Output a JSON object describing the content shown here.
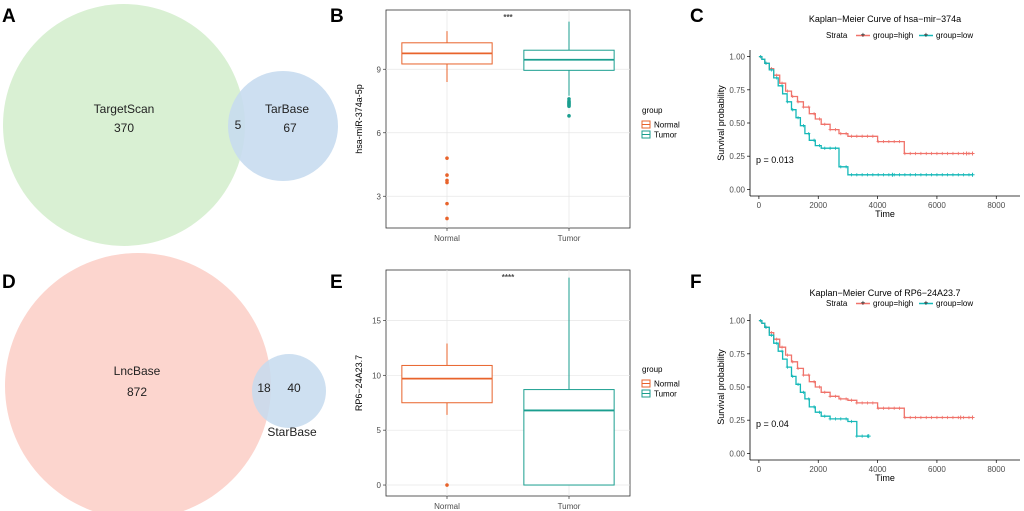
{
  "panel_letters": [
    "A",
    "B",
    "C",
    "D",
    "E",
    "F"
  ],
  "chart_data": [
    {
      "id": "A",
      "type": "venn",
      "sets": [
        {
          "name": "TargetScan",
          "only": 370,
          "color": "#d9f0d3"
        },
        {
          "name": "TarBase",
          "only": 67,
          "color": "#c6dbef"
        }
      ],
      "overlap": 5
    },
    {
      "id": "B",
      "type": "boxplot",
      "ylabel": "hsa-miR-374a-5p",
      "xlabel": "",
      "significance": "***",
      "ylim": [
        1.5,
        11.8
      ],
      "yticks": [
        3,
        6,
        9
      ],
      "categories": [
        "Normal",
        "Tumor"
      ],
      "legend_title": "group",
      "groups": [
        {
          "name": "Normal",
          "color": "#e8632b",
          "whislo": 8.4,
          "q1": 9.25,
          "med": 9.75,
          "q3": 10.25,
          "whishi": 10.8,
          "outliers": [
            4.8,
            4.0,
            3.75,
            3.65,
            2.65,
            1.95
          ]
        },
        {
          "name": "Tumor",
          "color": "#1a9e8f",
          "whislo": 7.75,
          "q1": 8.95,
          "med": 9.45,
          "q3": 9.9,
          "whishi": 11.25,
          "outliers": [
            7.6,
            7.5,
            7.45,
            7.4,
            7.35,
            7.3,
            7.25,
            6.8
          ]
        }
      ]
    },
    {
      "id": "C",
      "type": "line",
      "title": "Kaplan−Meier Curve of hsa−mir−374a",
      "xlabel": "Time",
      "ylabel": "Survival probability",
      "xlim": [
        -300,
        8800
      ],
      "ylim": [
        -0.05,
        1.05
      ],
      "xticks": [
        0,
        2000,
        4000,
        6000,
        8000
      ],
      "yticks": [
        "0.00",
        "0.25",
        "0.50",
        "0.75",
        "1.00"
      ],
      "legend_title": "Strata",
      "pvalue": "p = 0.013",
      "series": [
        {
          "name": "group=high",
          "color": "#f0736b",
          "x": [
            0,
            100,
            200,
            350,
            500,
            700,
            900,
            1100,
            1300,
            1500,
            1700,
            1900,
            2100,
            2400,
            2700,
            3000,
            3300,
            4000,
            4900,
            5500,
            7200
          ],
          "y": [
            1.0,
            0.98,
            0.95,
            0.91,
            0.86,
            0.8,
            0.74,
            0.7,
            0.66,
            0.62,
            0.57,
            0.53,
            0.49,
            0.45,
            0.42,
            0.4,
            0.4,
            0.36,
            0.27,
            0.27,
            0.27
          ],
          "censor_x": [
            7000,
            7200
          ]
        },
        {
          "name": "group=low",
          "color": "#14b8b8",
          "x": [
            0,
            100,
            200,
            350,
            500,
            650,
            800,
            950,
            1100,
            1250,
            1400,
            1550,
            1700,
            1900,
            2100,
            2400,
            2700,
            3000,
            3300,
            7200
          ],
          "y": [
            1.0,
            0.98,
            0.95,
            0.9,
            0.84,
            0.78,
            0.72,
            0.66,
            0.6,
            0.54,
            0.48,
            0.42,
            0.37,
            0.33,
            0.31,
            0.31,
            0.17,
            0.11,
            0.11,
            0.11
          ],
          "censor_x": [
            4500,
            7200
          ]
        }
      ]
    },
    {
      "id": "D",
      "type": "venn",
      "sets": [
        {
          "name": "LncBase",
          "only": 872,
          "color": "#fcd5ce"
        },
        {
          "name": "StarBase",
          "only": 40,
          "color": "#c6dbef"
        }
      ],
      "overlap": 18
    },
    {
      "id": "E",
      "type": "boxplot",
      "ylabel": "RP6−24A23.7",
      "xlabel": "",
      "significance": "****",
      "ylim": [
        -1,
        19.6
      ],
      "yticks": [
        0,
        5,
        10,
        15
      ],
      "categories": [
        "Normal",
        "Tumor"
      ],
      "legend_title": "group",
      "groups": [
        {
          "name": "Normal",
          "color": "#e8632b",
          "whislo": 6.4,
          "q1": 7.5,
          "med": 9.7,
          "q3": 10.9,
          "whishi": 12.9,
          "outliers": [
            0.0
          ]
        },
        {
          "name": "Tumor",
          "color": "#1a9e8f",
          "whislo": 0.0,
          "q1": 0.0,
          "med": 6.8,
          "q3": 8.7,
          "whishi": 18.9,
          "outliers": []
        }
      ]
    },
    {
      "id": "F",
      "type": "line",
      "title": "Kaplan−Meier Curve of RP6−24A23.7",
      "xlabel": "Time",
      "ylabel": "Survival probability",
      "xlim": [
        -300,
        8800
      ],
      "ylim": [
        -0.05,
        1.05
      ],
      "xticks": [
        0,
        2000,
        4000,
        6000,
        8000
      ],
      "yticks": [
        "0.00",
        "0.25",
        "0.50",
        "0.75",
        "1.00"
      ],
      "legend_title": "Strata",
      "pvalue": "p = 0.04",
      "series": [
        {
          "name": "group=high",
          "color": "#f0736b",
          "x": [
            0,
            100,
            200,
            350,
            500,
            700,
            900,
            1100,
            1300,
            1500,
            1700,
            1900,
            2100,
            2400,
            2700,
            3000,
            3300,
            4000,
            4900,
            5500,
            7200
          ],
          "y": [
            1.0,
            0.98,
            0.95,
            0.91,
            0.86,
            0.8,
            0.74,
            0.69,
            0.64,
            0.59,
            0.54,
            0.5,
            0.46,
            0.43,
            0.41,
            0.4,
            0.38,
            0.34,
            0.27,
            0.27,
            0.27
          ],
          "censor_x": [
            6800,
            7200
          ]
        },
        {
          "name": "group=low",
          "color": "#14b8b8",
          "x": [
            0,
            100,
            200,
            350,
            500,
            650,
            800,
            950,
            1100,
            1250,
            1400,
            1550,
            1700,
            1900,
            2100,
            2400,
            2700,
            3000,
            3300,
            3700
          ],
          "y": [
            1.0,
            0.98,
            0.95,
            0.89,
            0.83,
            0.77,
            0.71,
            0.65,
            0.58,
            0.52,
            0.46,
            0.41,
            0.35,
            0.31,
            0.28,
            0.26,
            0.26,
            0.24,
            0.13,
            0.13
          ],
          "censor_x": [
            3700
          ]
        }
      ]
    }
  ]
}
